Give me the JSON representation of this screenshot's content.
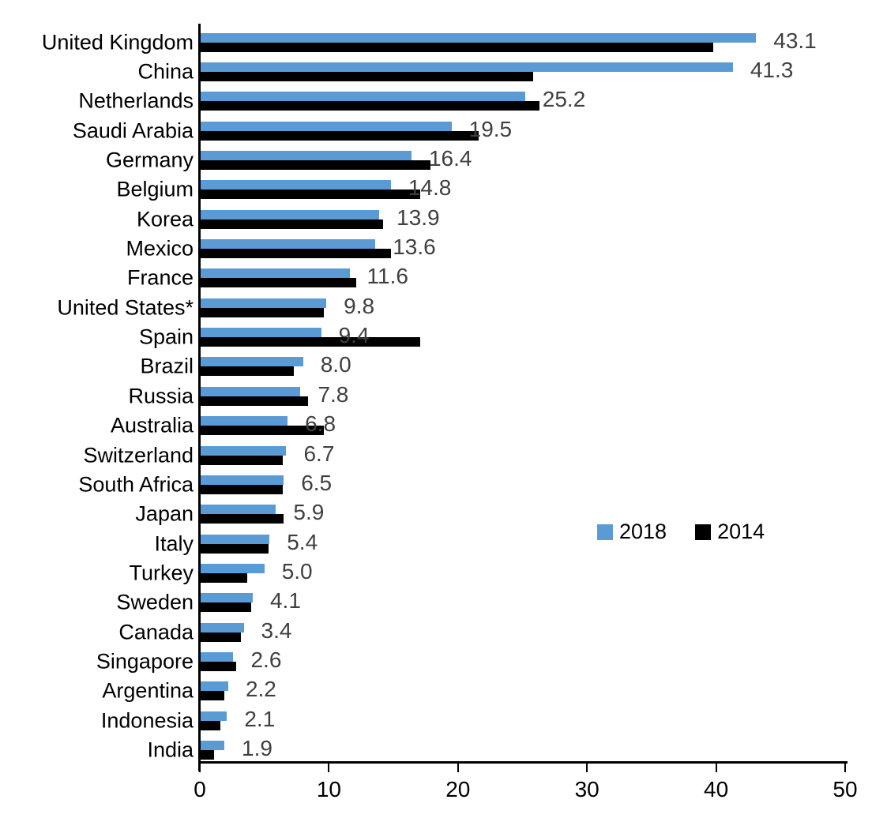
{
  "chart_data": {
    "type": "bar",
    "orientation": "horizontal",
    "title": "",
    "xlabel": "",
    "ylabel": "",
    "xlim": [
      0,
      50
    ],
    "x_ticks": [
      "0",
      "10",
      "20",
      "30",
      "40",
      "50"
    ],
    "grid": false,
    "legend_position": "middle-right",
    "categories": [
      "United Kingdom",
      "China",
      "Netherlands",
      "Saudi Arabia",
      "Germany",
      "Belgium",
      "Korea",
      "Mexico",
      "France",
      "United States*",
      "Spain",
      "Brazil",
      "Russia",
      "Australia",
      "Switzerland",
      "South Africa",
      "Japan",
      "Italy",
      "Turkey",
      "Sweden",
      "Canada",
      "Singapore",
      "Argentina",
      "Indonesia",
      "India"
    ],
    "series": [
      {
        "name": "2018",
        "color": "#5B9BD5",
        "values": [
          43.1,
          41.3,
          25.2,
          19.5,
          16.4,
          14.8,
          13.9,
          13.6,
          11.6,
          9.8,
          9.4,
          8.0,
          7.8,
          6.8,
          6.7,
          6.5,
          5.9,
          5.4,
          5.0,
          4.1,
          3.4,
          2.6,
          2.2,
          2.1,
          1.9
        ]
      },
      {
        "name": "2014",
        "color": "#000000",
        "values": [
          39.8,
          25.8,
          26.3,
          21.6,
          17.9,
          17.1,
          14.2,
          14.8,
          12.1,
          9.6,
          17.1,
          7.3,
          8.4,
          9.6,
          6.4,
          6.4,
          6.5,
          5.3,
          3.7,
          4.0,
          3.2,
          2.8,
          1.9,
          1.6,
          1.1
        ]
      }
    ],
    "data_labels": {
      "series": "2018",
      "values": [
        "43.1",
        "41.3",
        "25.2",
        "19.5",
        "16.4",
        "14.8",
        "13.9",
        "13.6",
        "11.6",
        "9.8",
        "9.4",
        "8.0",
        "7.8",
        "6.8",
        "6.7",
        "6.5",
        "5.9",
        "5.4",
        "5.0",
        "4.1",
        "3.4",
        "2.6",
        "2.2",
        "2.1",
        "1.9"
      ]
    },
    "legend": {
      "entries": [
        {
          "label": "2018",
          "color": "#5B9BD5"
        },
        {
          "label": "2014",
          "color": "#000000"
        }
      ]
    }
  }
}
